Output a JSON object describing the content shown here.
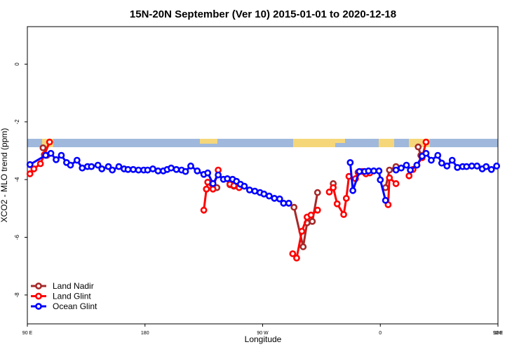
{
  "chart_data": {
    "type": "line",
    "title": "15N-20N September (Ver 10)   2015-01-01 to 2020-12-18",
    "x_label": "Longitude",
    "y_label": "XCO2 - MLO trend (ppm)",
    "xlim": [
      90,
      450
    ],
    "ylim": [
      -9,
      1.3
    ],
    "xticks": [
      {
        "value": 90,
        "label": "90 E"
      },
      180,
      {
        "value": 270,
        "label": "90 W"
      },
      {
        "value": 360,
        "label": "0"
      },
      {
        "value": 450,
        "label": "90 E"
      },
      {
        "value": 540,
        "label": "180"
      }
    ],
    "yticks": [
      0,
      -2,
      -4,
      -6,
      -8
    ],
    "legend": "bottom-left",
    "series": [
      {
        "name": "Land Nadir",
        "color": "#a52a2a",
        "x": [
          102,
          105,
          150,
          227,
          235,
          238,
          245,
          248,
          280,
          294,
          301,
          304,
          308,
          312,
          318,
          324,
          340,
          364,
          367,
          372,
          380,
          389,
          391
        ],
        "values": [
          -2.9,
          -3.16,
          null,
          -4.33,
          -4.28,
          null,
          -4.18,
          -4.23,
          null,
          -4.96,
          -6.33,
          -5.5,
          -5.45,
          -4.45,
          null,
          -4.14,
          null,
          -4.28,
          -3.67,
          -3.55,
          null,
          -2.87,
          -3.16
        ]
      },
      {
        "name": "Land Glint",
        "color": "#ff0000",
        "x": [
          92,
          95,
          100,
          103,
          107,
          150,
          225,
          227,
          228,
          232,
          236,
          238,
          245,
          248,
          252,
          290,
          293,
          296,
          300,
          304,
          307,
          312,
          315,
          321,
          324,
          327,
          332,
          334,
          336,
          341,
          343,
          346,
          349,
          352,
          358,
          366,
          367,
          372,
          376,
          382,
          385,
          388,
          392,
          395
        ],
        "values": [
          -3.8,
          -3.63,
          -3.45,
          -3.14,
          -2.7,
          null,
          -5.06,
          -4.33,
          -4.09,
          -4.33,
          -3.67,
          null,
          -4.16,
          -4.21,
          -4.28,
          null,
          -6.57,
          -6.72,
          -5.79,
          -5.3,
          -5.23,
          -5.06,
          null,
          -4.43,
          -4.28,
          -4.84,
          -5.21,
          -4.65,
          -3.89,
          -3.97,
          -3.75,
          -3.72,
          -3.8,
          -3.77,
          null,
          -4.87,
          -3.94,
          -4.14,
          null,
          -3.87,
          -3.65,
          -3.5,
          -3.24,
          -2.7
        ]
      },
      {
        "name": "Ocean Glint",
        "color": "#0000ff",
        "x": [
          92,
          104,
          108,
          112,
          116,
          120,
          123,
          128,
          132,
          136,
          139,
          144,
          147,
          152,
          155,
          160,
          164,
          167,
          171,
          175,
          179,
          182,
          186,
          190,
          194,
          197,
          200,
          204,
          208,
          211,
          215,
          220,
          225,
          228,
          232,
          236,
          240,
          243,
          247,
          250,
          253,
          256,
          260,
          264,
          268,
          271,
          275,
          279,
          283,
          286,
          290,
          300,
          337,
          339,
          344,
          348,
          351,
          355,
          359,
          360,
          364,
          368,
          372,
          376,
          380,
          383,
          388,
          392,
          395,
          399,
          404,
          407,
          411,
          415,
          419,
          423,
          426,
          430,
          434,
          438,
          441,
          445,
          449
        ],
        "values": [
          -3.48,
          -3.16,
          -3.09,
          -3.31,
          -3.16,
          -3.41,
          -3.5,
          -3.33,
          -3.6,
          -3.55,
          -3.55,
          -3.5,
          -3.63,
          -3.55,
          -3.67,
          -3.55,
          -3.63,
          -3.65,
          -3.65,
          -3.67,
          -3.67,
          -3.67,
          -3.63,
          -3.7,
          -3.7,
          -3.65,
          -3.6,
          -3.65,
          -3.67,
          -3.72,
          -3.53,
          -3.7,
          -3.82,
          -3.77,
          -4.14,
          -3.84,
          -3.99,
          -3.97,
          -3.99,
          -4.06,
          -4.16,
          -4.23,
          -4.36,
          -4.4,
          -4.45,
          -4.5,
          -4.57,
          -4.65,
          -4.67,
          -4.82,
          -4.82,
          null,
          -3.41,
          -4.38,
          -3.72,
          -3.72,
          -3.7,
          -3.7,
          -3.7,
          -4.01,
          -4.72,
          null,
          -3.67,
          -3.6,
          -3.5,
          -3.67,
          -3.5,
          -3.19,
          -3.09,
          -3.33,
          -3.16,
          -3.43,
          -3.53,
          -3.33,
          -3.58,
          -3.55,
          -3.55,
          -3.53,
          -3.53,
          -3.63,
          -3.55,
          -3.65,
          -3.53
        ]
      }
    ]
  }
}
